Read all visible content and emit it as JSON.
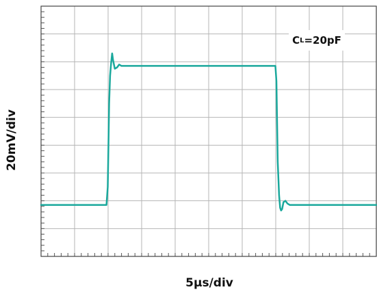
{
  "chart_data": {
    "type": "line",
    "title": "",
    "xlabel": "5µs/div",
    "ylabel": "20mV/div",
    "xlim": [
      0,
      10
    ],
    "ylim": [
      0,
      9
    ],
    "grid": true,
    "grid_divisions": {
      "x": 10,
      "y": 9
    },
    "annotation": {
      "base": "C",
      "subscript": "L",
      "suffix": "=20pF"
    },
    "series": [
      {
        "color": "#1aa89c",
        "x": [
          0,
          1.95,
          1.99,
          2.03,
          2.06,
          2.09,
          2.12,
          2.15,
          2.2,
          2.27,
          2.33,
          2.4,
          2.5,
          3,
          4,
          5,
          6,
          6.99,
          7.02,
          7.06,
          7.1,
          7.13,
          7.16,
          7.19,
          7.23,
          7.29,
          7.35,
          7.42,
          7.5,
          8,
          9,
          10
        ],
        "y": [
          1.85,
          1.85,
          2.5,
          5.5,
          6.5,
          6.95,
          7.3,
          7.05,
          6.75,
          6.8,
          6.9,
          6.85,
          6.85,
          6.85,
          6.85,
          6.85,
          6.85,
          6.85,
          6.3,
          3.4,
          2.2,
          1.75,
          1.65,
          1.7,
          1.95,
          2.0,
          1.9,
          1.85,
          1.85,
          1.85,
          1.85,
          1.85
        ]
      }
    ]
  }
}
